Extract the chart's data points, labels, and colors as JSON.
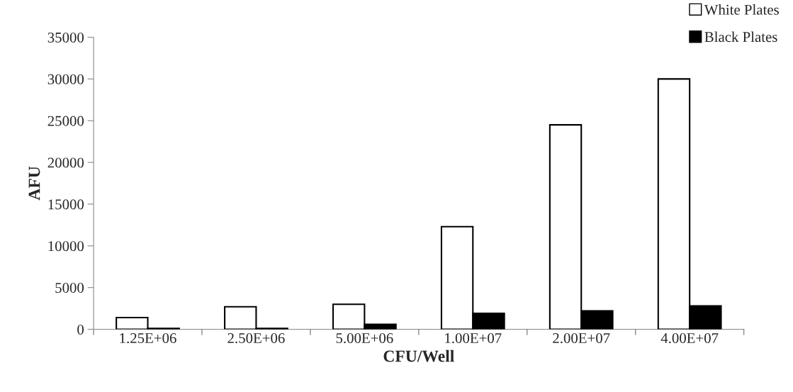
{
  "chart_data": {
    "type": "bar",
    "xlabel": "CFU/Well",
    "ylabel": "AFU",
    "categories": [
      "1.25E+06",
      "2.50E+06",
      "5.00E+06",
      "1.00E+07",
      "2.00E+07",
      "4.00E+07"
    ],
    "series": [
      {
        "name": "White Plates",
        "color": "#ffffff",
        "values": [
          1400,
          2700,
          3000,
          12300,
          24500,
          30000
        ]
      },
      {
        "name": "Black Plates",
        "color": "#000000",
        "values": [
          100,
          100,
          600,
          1900,
          2200,
          2800
        ]
      }
    ],
    "ylim": [
      0,
      35000
    ],
    "yticks": [
      0,
      5000,
      10000,
      15000,
      20000,
      25000,
      30000,
      35000
    ],
    "grid": false,
    "legend": "top right"
  }
}
